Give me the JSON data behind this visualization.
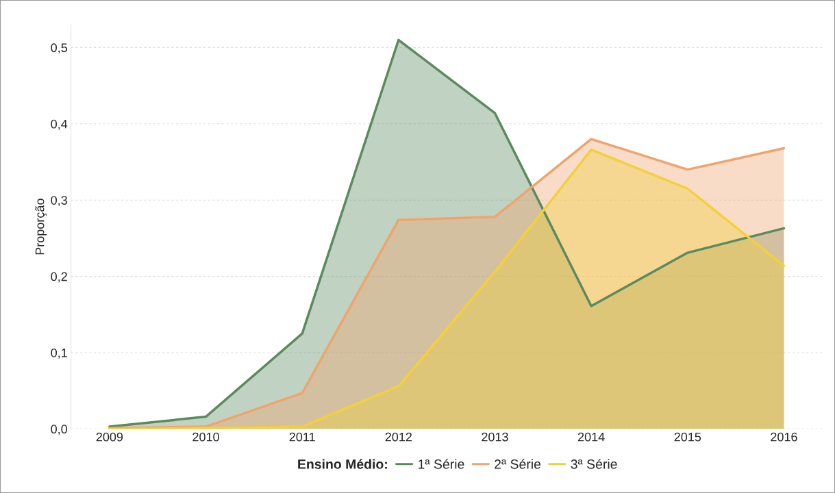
{
  "chart_data": {
    "type": "area",
    "ylabel": "Proporção",
    "legend_title": "Ensino Médio:",
    "categories": [
      "2009",
      "2010",
      "2011",
      "2012",
      "2013",
      "2014",
      "2015",
      "2016"
    ],
    "series": [
      {
        "name": "1ª Série",
        "color": "#5a8a5e",
        "values": [
          0.003,
          0.016,
          0.125,
          0.51,
          0.414,
          0.161,
          0.231,
          0.263
        ]
      },
      {
        "name": "2ª Série",
        "color": "#f0a46c",
        "values": [
          0.001,
          0.003,
          0.047,
          0.274,
          0.278,
          0.38,
          0.34,
          0.368
        ]
      },
      {
        "name": "3ª Série",
        "color": "#f2d03b",
        "values": [
          0.0,
          0.001,
          0.003,
          0.056,
          0.206,
          0.366,
          0.315,
          0.214
        ]
      }
    ],
    "ylim": [
      0,
      0.53
    ],
    "yticks": [
      {
        "value": 0,
        "label": "0,0"
      },
      {
        "value": 0.1,
        "label": "0,1"
      },
      {
        "value": 0.2,
        "label": "0,2"
      },
      {
        "value": 0.3,
        "label": "0,3"
      },
      {
        "value": 0.4,
        "label": "0,4"
      },
      {
        "value": 0.5,
        "label": "0,5"
      }
    ],
    "grid": "y",
    "legend": "bottom"
  }
}
